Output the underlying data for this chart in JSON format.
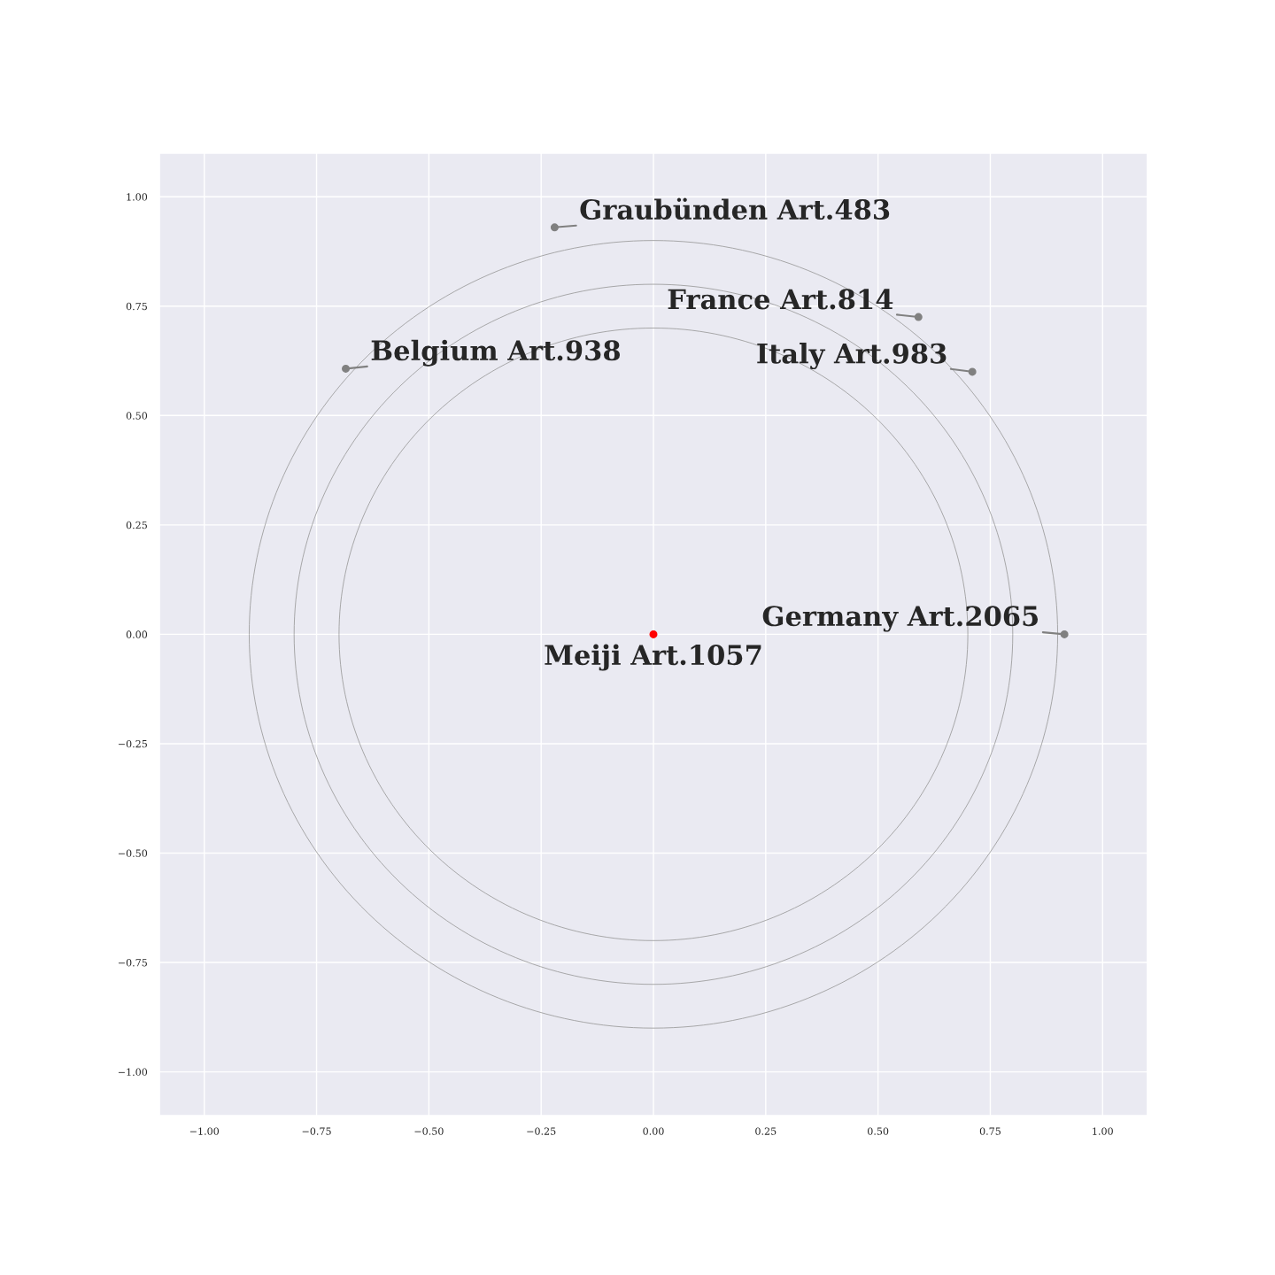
{
  "chart_data": {
    "type": "scatter",
    "xlim": [
      -1.1,
      1.1
    ],
    "ylim": [
      -1.1,
      1.1
    ],
    "xticks": [
      {
        "value": -1.0,
        "label": "−1.00"
      },
      {
        "value": -0.75,
        "label": "−0.75"
      },
      {
        "value": -0.5,
        "label": "−0.50"
      },
      {
        "value": -0.25,
        "label": "−0.25"
      },
      {
        "value": 0.0,
        "label": "0.00"
      },
      {
        "value": 0.25,
        "label": "0.25"
      },
      {
        "value": 0.5,
        "label": "0.50"
      },
      {
        "value": 0.75,
        "label": "0.75"
      },
      {
        "value": 1.0,
        "label": "1.00"
      }
    ],
    "yticks": [
      {
        "value": -1.0,
        "label": "−1.00"
      },
      {
        "value": -0.75,
        "label": "−0.75"
      },
      {
        "value": -0.5,
        "label": "−0.50"
      },
      {
        "value": -0.25,
        "label": "−0.25"
      },
      {
        "value": 0.0,
        "label": "0.00"
      },
      {
        "value": 0.25,
        "label": "0.25"
      },
      {
        "value": 0.5,
        "label": "0.50"
      },
      {
        "value": 0.75,
        "label": "0.75"
      },
      {
        "value": 1.0,
        "label": "1.00"
      }
    ],
    "grid": true,
    "series": [
      {
        "marker": "circle",
        "colors": [
          "#ff0000",
          "#808080",
          "#808080",
          "#808080",
          "#808080",
          "#808080"
        ],
        "x": [
          0,
          0.915,
          -0.22,
          0.59,
          0.71,
          -0.685
        ],
        "values": [
          0,
          0,
          0.93,
          0.725,
          0.6,
          0.607
        ]
      }
    ],
    "annotations": [
      {
        "text": "Meiji Art.1057",
        "x": 0,
        "y": 0
      },
      {
        "text": "Germany Art.2065",
        "x": 0.915,
        "y": 0
      },
      {
        "text": "Graubünden Art.483",
        "x": -0.22,
        "y": 0.93
      },
      {
        "text": "France Art.814",
        "x": 0.59,
        "y": 0.725
      },
      {
        "text": "Italy Art.983",
        "x": 0.71,
        "y": 0.6
      },
      {
        "text": "Belgium Art.938",
        "x": -0.685,
        "y": 0.607
      }
    ]
  }
}
